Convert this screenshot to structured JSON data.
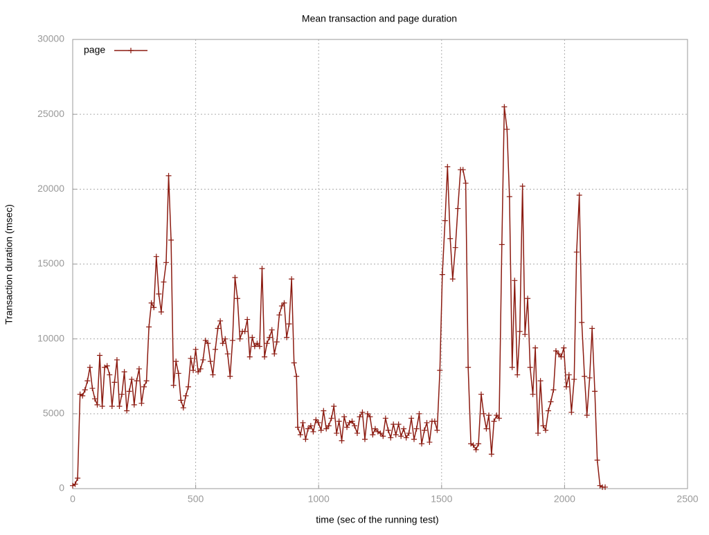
{
  "chart_data": {
    "type": "line",
    "title": "Mean transaction and page duration",
    "x_label": "time (sec of the running test)",
    "y_label": "Transaction duration (msec)",
    "xlim": [
      0,
      2500
    ],
    "xticks": [
      0,
      500,
      1000,
      1500,
      2000,
      2500
    ],
    "ylim": [
      0,
      30000
    ],
    "yticks": [
      0,
      5000,
      10000,
      15000,
      20000,
      25000,
      30000
    ],
    "grid": true,
    "legend": "top-left",
    "series": [
      {
        "name": "page",
        "color": "#8b1a10",
        "x": [
          0,
          10,
          20,
          30,
          40,
          50,
          60,
          70,
          80,
          90,
          100,
          110,
          120,
          130,
          140,
          150,
          160,
          170,
          180,
          190,
          200,
          210,
          220,
          230,
          240,
          250,
          260,
          270,
          280,
          290,
          300,
          310,
          320,
          330,
          340,
          350,
          360,
          370,
          380,
          390,
          400,
          410,
          420,
          430,
          440,
          450,
          460,
          470,
          480,
          490,
          500,
          510,
          520,
          530,
          540,
          550,
          560,
          570,
          580,
          590,
          600,
          610,
          620,
          630,
          640,
          650,
          660,
          670,
          680,
          690,
          700,
          710,
          720,
          730,
          740,
          750,
          760,
          770,
          780,
          790,
          800,
          810,
          820,
          830,
          840,
          850,
          860,
          870,
          880,
          890,
          900,
          910,
          915,
          926,
          936,
          947,
          957,
          968,
          978,
          989,
          999,
          1010,
          1020,
          1031,
          1041,
          1052,
          1062,
          1073,
          1083,
          1094,
          1104,
          1115,
          1125,
          1136,
          1146,
          1157,
          1167,
          1178,
          1188,
          1199,
          1209,
          1220,
          1230,
          1241,
          1251,
          1262,
          1272,
          1283,
          1293,
          1304,
          1314,
          1325,
          1335,
          1346,
          1356,
          1367,
          1377,
          1388,
          1398,
          1409,
          1419,
          1430,
          1440,
          1451,
          1461,
          1472,
          1482,
          1493,
          1503,
          1514,
          1524,
          1535,
          1545,
          1556,
          1566,
          1577,
          1587,
          1598,
          1608,
          1619,
          1629,
          1640,
          1650,
          1661,
          1671,
          1682,
          1692,
          1703,
          1713,
          1724,
          1734,
          1745,
          1755,
          1766,
          1776,
          1787,
          1797,
          1808,
          1818,
          1829,
          1839,
          1850,
          1860,
          1871,
          1881,
          1892,
          1902,
          1913,
          1923,
          1934,
          1944,
          1955,
          1965,
          1976,
          1986,
          1997,
          2007,
          2018,
          2028,
          2039,
          2049,
          2060,
          2070,
          2081,
          2091,
          2102,
          2112,
          2123,
          2133,
          2144,
          2154,
          2165
        ],
        "values": [
          200,
          300,
          700,
          6300,
          6200,
          6600,
          7200,
          8100,
          6700,
          6000,
          5600,
          8900,
          5500,
          8100,
          8200,
          7600,
          5500,
          7100,
          8600,
          5500,
          6300,
          7800,
          5200,
          6500,
          7300,
          5600,
          7200,
          8000,
          5700,
          6800,
          7200,
          10800,
          12400,
          12100,
          15500,
          13000,
          11800,
          13800,
          15100,
          20900,
          16600,
          6900,
          8500,
          7700,
          5900,
          5400,
          6200,
          6800,
          8700,
          7900,
          9300,
          7800,
          8000,
          8600,
          9900,
          9700,
          8500,
          7600,
          9300,
          10700,
          11200,
          9700,
          10000,
          9000,
          7500,
          9900,
          14100,
          12700,
          10000,
          10500,
          10500,
          11300,
          8800,
          10100,
          9500,
          9700,
          9500,
          14700,
          8800,
          9700,
          10100,
          10600,
          9000,
          9800,
          11600,
          12200,
          12400,
          10100,
          11000,
          14000,
          8400,
          7500,
          4100,
          3600,
          4400,
          3300,
          4000,
          4200,
          3800,
          4600,
          4400,
          3900,
          5200,
          4000,
          4200,
          4700,
          5500,
          3700,
          4500,
          3200,
          4800,
          4100,
          4400,
          4500,
          4200,
          3700,
          4800,
          5100,
          3300,
          5000,
          4800,
          3600,
          4000,
          3800,
          3700,
          3500,
          4700,
          3900,
          3400,
          4300,
          3600,
          4300,
          3500,
          4000,
          3400,
          3700,
          4700,
          3300,
          4000,
          5000,
          3000,
          3900,
          4400,
          3100,
          4500,
          4500,
          3900,
          7900,
          14300,
          17900,
          21500,
          16700,
          14000,
          16100,
          18700,
          21300,
          21300,
          20400,
          8100,
          3000,
          2900,
          2600,
          3000,
          6300,
          5000,
          4000,
          4900,
          2300,
          4500,
          4900,
          4700,
          16300,
          25500,
          24000,
          19500,
          8100,
          13900,
          7600,
          10500,
          20200,
          10300,
          12700,
          8100,
          6300,
          9400,
          3700,
          7200,
          4200,
          3900,
          5200,
          5800,
          6600,
          9200,
          9000,
          8800,
          9400,
          6800,
          7600,
          5100,
          7300,
          15800,
          19600,
          11100,
          7500,
          4900,
          7400,
          10700,
          6500,
          1900,
          200,
          100,
          100
        ]
      }
    ]
  }
}
